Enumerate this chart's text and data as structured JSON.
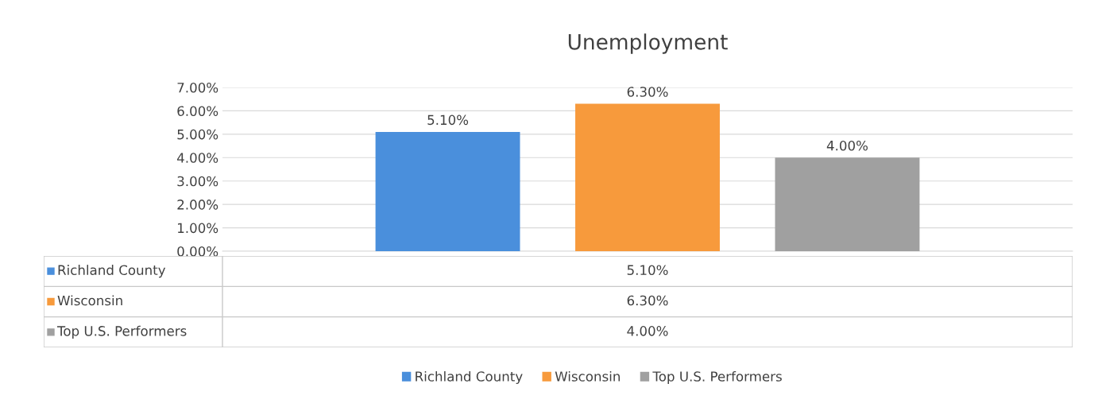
{
  "chart_data": {
    "type": "bar",
    "title": "Unemployment",
    "categories": [
      null
    ],
    "series": [
      {
        "name": "Richland County",
        "color": "#4a8fdc",
        "values": [
          5.1
        ],
        "value_labels": [
          "5.10%"
        ]
      },
      {
        "name": "Wisconsin",
        "color": "#f79a3c",
        "values": [
          6.3
        ],
        "value_labels": [
          "6.30%"
        ]
      },
      {
        "name": "Top U.S. Performers",
        "color": "#a0a0a0",
        "values": [
          4.0
        ],
        "value_labels": [
          "4.00%"
        ]
      }
    ],
    "ylim": [
      0,
      7
    ],
    "yticks": [
      {
        "value": 0,
        "label": "0.00%"
      },
      {
        "value": 1,
        "label": "1.00%"
      },
      {
        "value": 2,
        "label": "2.00%"
      },
      {
        "value": 3,
        "label": "3.00%"
      },
      {
        "value": 4,
        "label": "4.00%"
      },
      {
        "value": 5,
        "label": "5.00%"
      },
      {
        "value": 6,
        "label": "6.00%"
      },
      {
        "value": 7,
        "label": "7.00%"
      }
    ],
    "grid": "y",
    "legend": "bottom"
  }
}
